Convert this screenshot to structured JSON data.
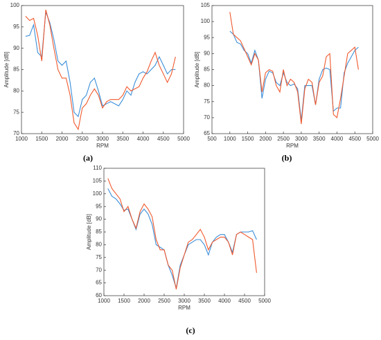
{
  "chart_data": [
    {
      "type": "line",
      "caption": "(a)",
      "x_label": "RPM",
      "y_label": "Amplitude [dB]",
      "xlim": [
        1000,
        5000
      ],
      "ylim": [
        70,
        100
      ],
      "xticks": [
        1000,
        1500,
        2000,
        2500,
        3000,
        3500,
        4000,
        4500,
        5000
      ],
      "yticks": [
        70,
        75,
        80,
        85,
        90,
        95,
        100
      ],
      "x": [
        1100,
        1200,
        1300,
        1400,
        1500,
        1600,
        1700,
        1800,
        1900,
        2000,
        2100,
        2200,
        2300,
        2400,
        2500,
        2600,
        2700,
        2800,
        2900,
        3000,
        3100,
        3200,
        3300,
        3400,
        3500,
        3600,
        3700,
        3800,
        3900,
        4000,
        4100,
        4200,
        4300,
        4400,
        4500,
        4600,
        4700,
        4800
      ],
      "series": [
        {
          "color": "#3b8ed8",
          "values": [
            92.8,
            93,
            95.5,
            89,
            88,
            98.5,
            96,
            92,
            87,
            86,
            87,
            82,
            75,
            74,
            78,
            79,
            82,
            83,
            80,
            76.5,
            77,
            77.5,
            77,
            76.5,
            78,
            80,
            79,
            82,
            84,
            84.5,
            84,
            85,
            86,
            88,
            86,
            84,
            85,
            85
          ]
        },
        {
          "color": "#f0582c",
          "values": [
            97.5,
            96.5,
            97,
            93,
            87,
            99,
            95.5,
            90,
            85,
            83,
            83,
            79,
            72.5,
            71,
            76,
            77,
            79,
            80.5,
            79,
            76,
            77.5,
            78,
            78,
            78,
            79,
            81,
            80,
            80.5,
            81,
            83,
            84.5,
            87,
            89,
            86,
            84,
            82,
            84,
            88
          ]
        }
      ]
    },
    {
      "type": "line",
      "caption": "(b)",
      "x_label": "RPM",
      "y_label": "Amplitude [dB]",
      "xlim": [
        500,
        5000
      ],
      "ylim": [
        65,
        105
      ],
      "xticks": [
        500,
        1000,
        1500,
        2000,
        2500,
        3000,
        3500,
        4000,
        4500,
        5000
      ],
      "yticks": [
        65,
        70,
        75,
        80,
        85,
        90,
        95,
        100,
        105
      ],
      "x": [
        1000,
        1100,
        1200,
        1300,
        1400,
        1500,
        1600,
        1700,
        1800,
        1900,
        2000,
        2100,
        2200,
        2300,
        2400,
        2500,
        2600,
        2700,
        2800,
        2900,
        3000,
        3100,
        3200,
        3300,
        3400,
        3500,
        3600,
        3700,
        3800,
        3900,
        4000,
        4100,
        4200,
        4300,
        4400,
        4500,
        4600
      ],
      "series": [
        {
          "color": "#3b8ed8",
          "values": [
            97,
            96,
            93.5,
            93,
            91,
            90,
            87,
            91,
            88,
            76,
            82,
            84.5,
            84,
            81,
            80,
            84,
            81,
            80,
            80.5,
            79,
            69,
            80,
            80,
            80,
            74,
            82,
            85,
            85.5,
            85,
            72,
            73,
            73,
            84,
            87,
            89,
            91,
            92
          ]
        },
        {
          "color": "#f0582c",
          "values": [
            103,
            96,
            95,
            94,
            91.5,
            89,
            86.5,
            90,
            88,
            78,
            84,
            85,
            84.5,
            80,
            78,
            85,
            80,
            82,
            81,
            78,
            68,
            79,
            82,
            81,
            74,
            81,
            83,
            89,
            90,
            71,
            70,
            76,
            83,
            90,
            91,
            92,
            85
          ]
        }
      ]
    },
    {
      "type": "line",
      "caption": "(c)",
      "x_label": "RPM",
      "y_label": "Amplitude [dB]",
      "xlim": [
        1000,
        5000
      ],
      "ylim": [
        60,
        110
      ],
      "xticks": [
        1000,
        1500,
        2000,
        2500,
        3000,
        3500,
        4000,
        4500,
        5000
      ],
      "yticks": [
        60,
        65,
        70,
        75,
        80,
        85,
        90,
        95,
        100,
        105,
        110
      ],
      "x": [
        1100,
        1200,
        1300,
        1400,
        1500,
        1600,
        1700,
        1800,
        1900,
        2000,
        2100,
        2200,
        2300,
        2400,
        2500,
        2600,
        2700,
        2800,
        2900,
        3000,
        3100,
        3200,
        3300,
        3400,
        3500,
        3600,
        3700,
        3800,
        3900,
        4000,
        4100,
        4200,
        4300,
        4400,
        4500,
        4600,
        4700,
        4800
      ],
      "series": [
        {
          "color": "#3b8ed8",
          "values": [
            102,
            99,
            98,
            96,
            93.5,
            94,
            90,
            86,
            92,
            94,
            92,
            88,
            80,
            79,
            78,
            72,
            68,
            63,
            72,
            76,
            80,
            81,
            82,
            82,
            80,
            76,
            81,
            83,
            84,
            84,
            81,
            77,
            84,
            85,
            85,
            85,
            85.5,
            82
          ]
        },
        {
          "color": "#f0582c",
          "values": [
            106,
            102,
            100,
            98,
            93,
            95,
            90,
            86.5,
            93,
            96,
            94,
            91,
            82,
            78,
            78,
            72,
            70,
            62.5,
            71,
            76,
            81,
            82,
            84,
            86,
            83,
            78,
            81,
            82,
            83,
            83,
            81,
            76,
            84,
            85,
            84,
            83,
            82,
            69
          ]
        }
      ]
    }
  ]
}
